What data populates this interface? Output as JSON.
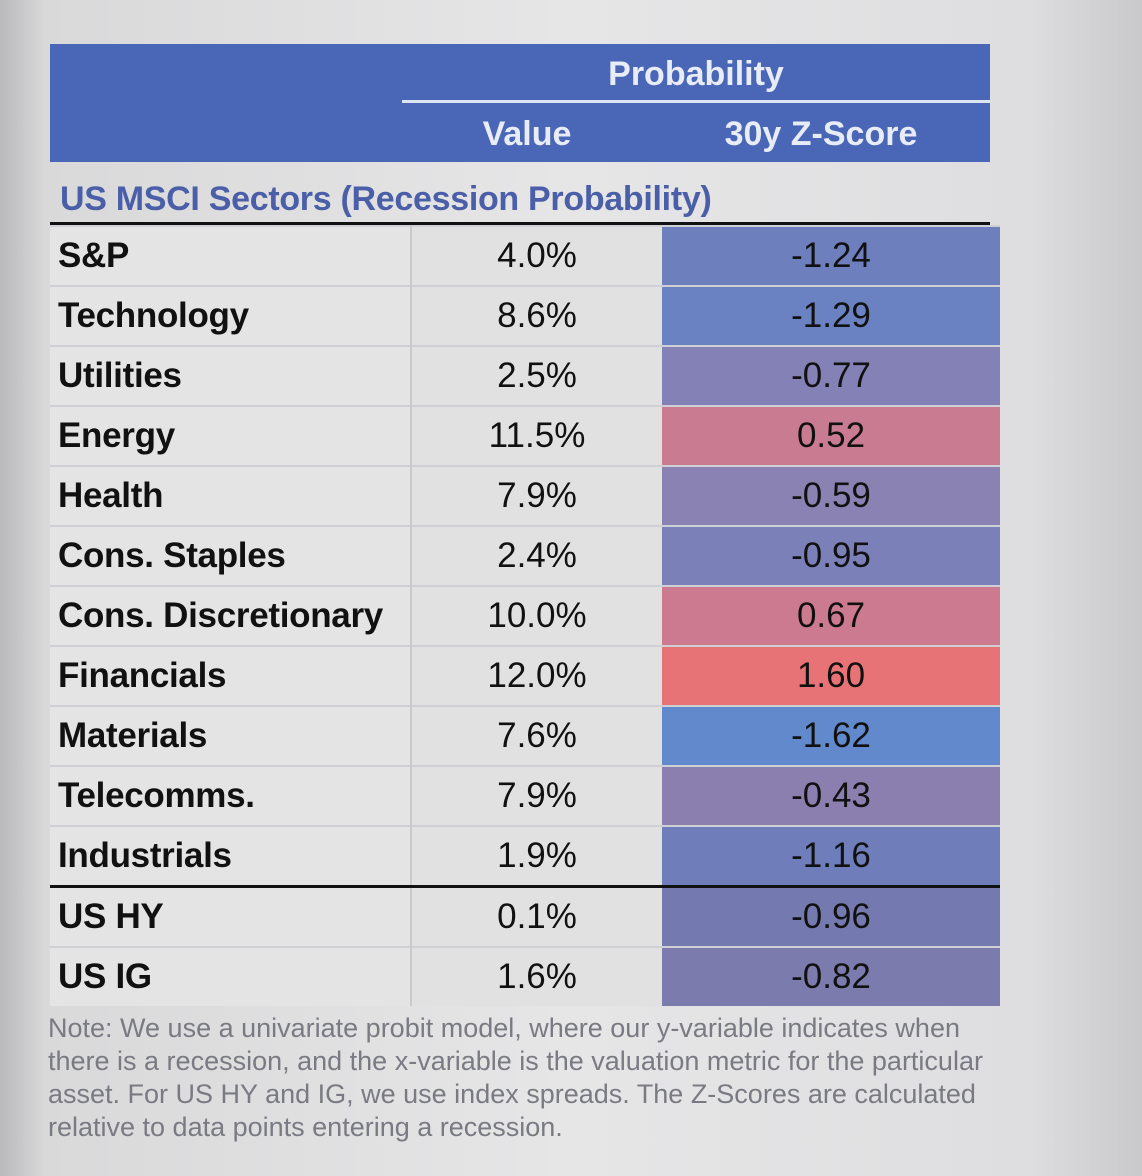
{
  "header": {
    "group_label": "Probability",
    "value_label": "Value",
    "zscore_label": "30y Z-Score"
  },
  "section_title": "US MSCI Sectors (Recession Probability)",
  "rows": [
    {
      "name": "S&P",
      "value": "4.0%",
      "z": "-1.24",
      "color": "#6e7fbe"
    },
    {
      "name": "Technology",
      "value": "8.6%",
      "z": "-1.29",
      "color": "#6b82c2"
    },
    {
      "name": "Utilities",
      "value": "2.5%",
      "z": "-0.77",
      "color": "#8381b5"
    },
    {
      "name": "Energy",
      "value": "11.5%",
      "z": "0.52",
      "color": "#c97b92"
    },
    {
      "name": "Health",
      "value": "7.9%",
      "z": "-0.59",
      "color": "#8a82b3"
    },
    {
      "name": "Cons. Staples",
      "value": "2.4%",
      "z": "-0.95",
      "color": "#7b80b8"
    },
    {
      "name": "Cons. Discretionary",
      "value": "10.0%",
      "z": "0.67",
      "color": "#cc7a8f"
    },
    {
      "name": "Financials",
      "value": "12.0%",
      "z": "1.60",
      "color": "#e87377"
    },
    {
      "name": "Materials",
      "value": "7.6%",
      "z": "-1.62",
      "color": "#6289cc"
    },
    {
      "name": "Telecomms.",
      "value": "7.9%",
      "z": "-0.43",
      "color": "#8b7fb0"
    },
    {
      "name": "Industrials",
      "value": "1.9%",
      "z": "-1.16",
      "color": "#6f7eba"
    },
    {
      "name": "US HY",
      "value": "0.1%",
      "z": "-0.96",
      "color": "#747aaf"
    },
    {
      "name": "US IG",
      "value": "1.6%",
      "z": "-0.82",
      "color": "#7b7bae"
    }
  ],
  "note": "Note: We use a univariate probit model, where our y-variable indicates when there is a recession, and the x-variable is the valuation metric for the particular asset. For US HY and IG, we use index spreads. The Z-Scores are calculated relative to data points entering a recession."
}
